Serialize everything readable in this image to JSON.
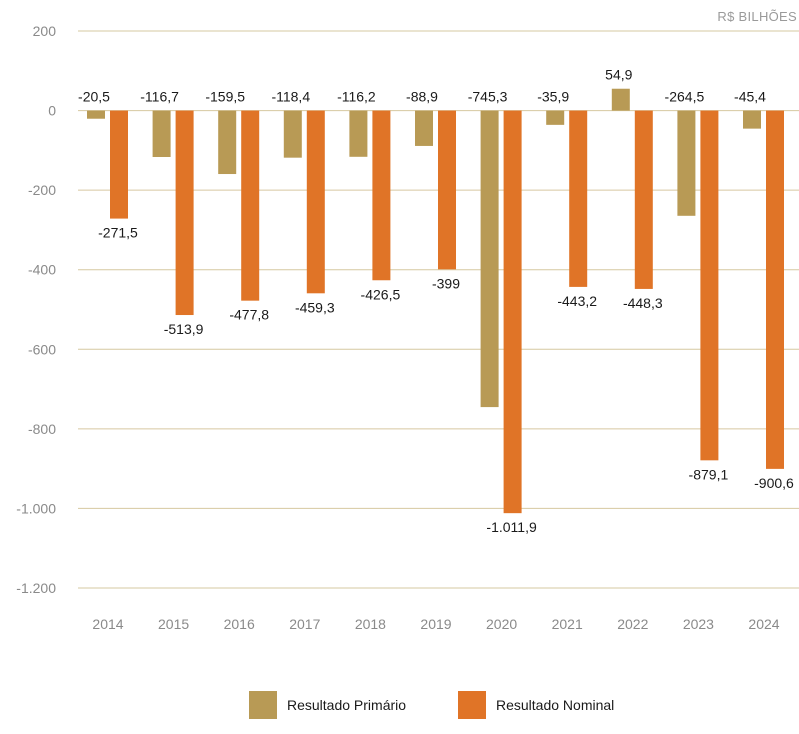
{
  "chart_data": {
    "type": "bar",
    "unit_label": "R$ BILHÕES",
    "categories": [
      "2014",
      "2015",
      "2016",
      "2017",
      "2018",
      "2019",
      "2020",
      "2021",
      "2022",
      "2023",
      "2024"
    ],
    "series": [
      {
        "name": "Resultado Primário",
        "color": "#b89a55",
        "values": [
          -20.5,
          -116.7,
          -159.5,
          -118.4,
          -116.2,
          -88.9,
          -745.3,
          -35.9,
          54.9,
          -264.5,
          -45.4
        ],
        "labels": [
          "-20,5",
          "-116,7",
          "-159,5",
          "-118,4",
          "-116,2",
          "-88,9",
          "-745,3",
          "-35,9",
          "54,9",
          "-264,5",
          "-45,4"
        ]
      },
      {
        "name": "Resultado Nominal",
        "color": "#e07427",
        "values": [
          -271.5,
          -513.9,
          -477.8,
          -459.3,
          -426.5,
          -399,
          -1011.9,
          -443.2,
          -448.3,
          -879.1,
          -900.6
        ],
        "labels": [
          "-271,5",
          "-513,9",
          "-477,8",
          "-459,3",
          "-426,5",
          "-399",
          "-1.011,9",
          "-443,2",
          "-448,3",
          "-879,1",
          "-900,6"
        ]
      }
    ],
    "ylim": [
      -1200,
      200
    ],
    "yticks": [
      200,
      0,
      -200,
      -400,
      -600,
      -800,
      -1000,
      -1200
    ],
    "ytick_labels": [
      "200",
      "0",
      "-200",
      "-400",
      "-600",
      "-800",
      "-1.000",
      "-1.200"
    ],
    "grid": true,
    "legend_position": "bottom-center"
  },
  "legend": {
    "primary_label": "Resultado Primário",
    "nominal_label": "Resultado Nominal"
  }
}
